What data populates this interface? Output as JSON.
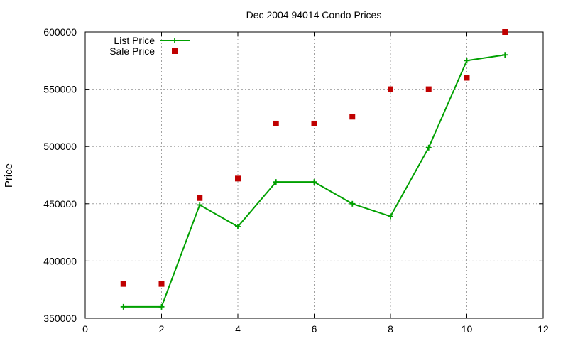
{
  "chart_data": {
    "type": "line",
    "title": "Dec 2004 94014 Condo Prices",
    "xlabel": "",
    "ylabel": "Price",
    "xlim": [
      0,
      12
    ],
    "ylim": [
      350000,
      600000
    ],
    "x_ticks": [
      0,
      2,
      4,
      6,
      8,
      10,
      12
    ],
    "y_ticks": [
      350000,
      400000,
      450000,
      500000,
      550000,
      600000
    ],
    "grid": true,
    "legend_position": "top-left",
    "series": [
      {
        "name": "List Price",
        "style": "line-points",
        "color": "#00a000",
        "x": [
          1,
          2,
          3,
          4,
          5,
          6,
          7,
          8,
          9,
          10,
          11
        ],
        "y": [
          360000,
          360000,
          449000,
          430000,
          469000,
          469000,
          450000,
          439000,
          499000,
          575000,
          580000
        ]
      },
      {
        "name": "Sale Price",
        "style": "points",
        "color": "#c00000",
        "x": [
          1,
          2,
          3,
          4,
          5,
          6,
          7,
          8,
          9,
          10,
          11
        ],
        "y": [
          380000,
          380000,
          455000,
          472000,
          520000,
          520000,
          526000,
          550000,
          550000,
          560000,
          600000
        ]
      }
    ]
  }
}
